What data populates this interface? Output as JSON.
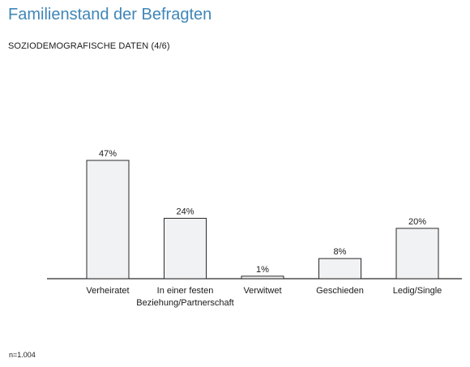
{
  "header": {
    "title": "Familienstand der Befragten",
    "subtitle": "SOZIODEMOGRAFISCHE DATEN (4/6)"
  },
  "footer": {
    "note": "n=1.004"
  },
  "chart_data": {
    "type": "bar",
    "categories": [
      [
        "Verheiratet"
      ],
      [
        "In einer festen",
        "Beziehung/Partnerschaft"
      ],
      [
        "Verwitwet"
      ],
      [
        "Geschieden"
      ],
      [
        "Ledig/Single"
      ]
    ],
    "values": [
      47,
      24,
      1,
      8,
      20
    ],
    "value_labels": [
      "47%",
      "24%",
      "1%",
      "8%",
      "20%"
    ],
    "unit": "%",
    "ylim": [
      0,
      50
    ],
    "grid": false,
    "legend": "none",
    "colors": {
      "bar_fill": "#f1f2f4",
      "bar_stroke": "#2a2a2a",
      "baseline": "#2a2a2a"
    }
  }
}
